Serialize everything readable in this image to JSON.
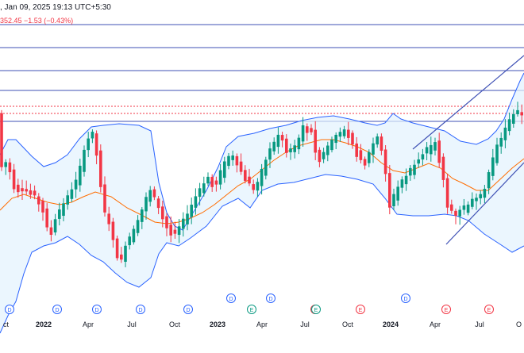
{
  "header": {
    "timestamp": ", Jan 09, 2025 19:13 UTC+5:30",
    "change": "352.45  −1.53 (−0.43%)"
  },
  "colors": {
    "up": "#089981",
    "down": "#f23645",
    "band": "#2962ff",
    "band_fill": "#e3f2fd",
    "ma": "#ff6d00",
    "hline": "#3f51b5",
    "trend": "#3f51b5",
    "dotted": "#f23645"
  },
  "x_axis": {
    "labels": [
      {
        "text": "ct",
        "bold": false
      },
      {
        "text": "2022",
        "bold": true
      },
      {
        "text": "Apr",
        "bold": false
      },
      {
        "text": "Jul",
        "bold": false
      },
      {
        "text": "Oct",
        "bold": false
      },
      {
        "text": "2023",
        "bold": true
      },
      {
        "text": "Apr",
        "bold": false
      },
      {
        "text": "Jul",
        "bold": false
      },
      {
        "text": "Oct",
        "bold": false
      },
      {
        "text": "2024",
        "bold": true
      },
      {
        "text": "Apr",
        "bold": false
      },
      {
        "text": "Jul",
        "bold": false
      },
      {
        "text": "O",
        "bold": false
      }
    ]
  },
  "event_markers": [
    {
      "kind": "D",
      "color": "#2962ff"
    },
    {
      "kind": "D",
      "color": "#2962ff"
    },
    {
      "kind": "D",
      "color": "#2962ff"
    },
    {
      "kind": "D",
      "color": "#2962ff"
    },
    {
      "kind": "D",
      "color": "#2962ff"
    },
    {
      "kind": "D",
      "color": "#2962ff"
    },
    {
      "kind": "E",
      "color": "#089981"
    },
    {
      "kind": "D",
      "color": "#2962ff"
    },
    {
      "kind": "E",
      "color": "#f23645"
    },
    {
      "kind": "E",
      "color": "#f23645"
    },
    {
      "kind": "E",
      "color": "#089981"
    },
    {
      "kind": "D",
      "color": "#2962ff"
    },
    {
      "kind": "E",
      "color": "#f23645"
    },
    {
      "kind": "E",
      "color": "#f23645"
    }
  ]
}
